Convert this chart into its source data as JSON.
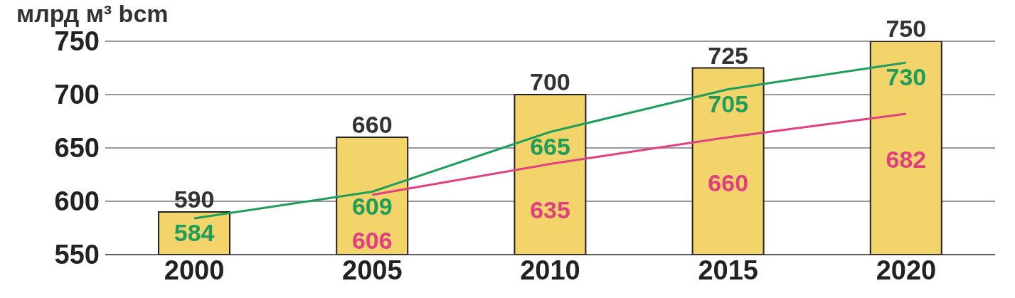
{
  "chart_data": {
    "type": "bar",
    "ylabel": "млрд м³ bcm",
    "categories": [
      "2000",
      "2005",
      "2010",
      "2015",
      "2020"
    ],
    "series": [
      {
        "color": "#f2d46a",
        "values": [
          590,
          660,
          700,
          725,
          750
        ]
      },
      {
        "type": "line",
        "color": "#1e9e5a",
        "values": [
          584,
          609,
          665,
          705,
          730
        ]
      },
      {
        "type": "line",
        "color": "#e0407f",
        "values": [
          null,
          606,
          635,
          660,
          682
        ]
      }
    ],
    "ylim": [
      550,
      750
    ],
    "yticks": [
      550,
      600,
      650,
      700,
      750
    ],
    "grid": "y",
    "data_labels": true,
    "marker": "none",
    "line_style": "solid",
    "legend": false
  }
}
